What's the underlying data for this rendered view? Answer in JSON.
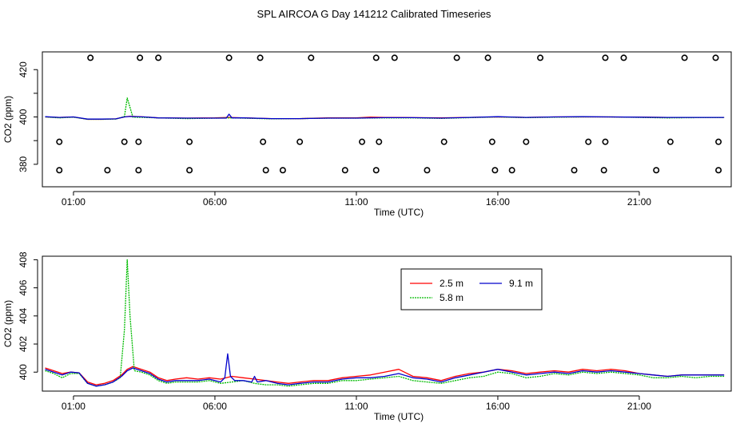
{
  "figure": {
    "title": "SPL AIRCOA G  Day 141212  Calibrated Timeseries"
  },
  "chart_data": [
    {
      "type": "line+scatter",
      "panel": "top",
      "xlabel": "Time (UTC)",
      "ylabel": "CO2 (ppm)",
      "xlim": [
        -0.1,
        24.25
      ],
      "ylim": [
        370.5,
        427.5
      ],
      "xticks": [
        1,
        6,
        11,
        16,
        21
      ],
      "xtick_labels": [
        "01:00",
        "06:00",
        "11:00",
        "16:00",
        "21:00"
      ],
      "yticks": [
        380,
        390,
        400,
        410,
        420
      ],
      "ytick_labels": [
        "380",
        "",
        "400",
        "",
        "420"
      ],
      "series": [
        {
          "name": "2.5 m",
          "color": "#ff0000",
          "x": [
            0,
            0.5,
            1,
            1.5,
            2,
            2.5,
            2.8,
            3,
            3.5,
            4,
            5,
            6,
            6.5,
            7,
            8,
            9,
            10,
            11,
            11.5,
            12,
            13,
            14,
            15,
            16,
            17,
            18,
            19,
            20,
            21,
            22,
            23,
            24
          ],
          "y": [
            400,
            399.8,
            400,
            399,
            399,
            399.2,
            400,
            400.3,
            400,
            399.6,
            399.5,
            399.6,
            399.8,
            399.6,
            399.3,
            399.3,
            399.6,
            399.6,
            399.9,
            399.8,
            399.7,
            399.6,
            399.8,
            400,
            399.8,
            400,
            400,
            400,
            399.9,
            399.8,
            399.8,
            399.8
          ]
        },
        {
          "name": "5.8 m",
          "color": "#00bb00",
          "x": [
            0,
            0.5,
            1,
            1.5,
            2,
            2.5,
            2.8,
            2.9,
            3.1,
            3.5,
            4,
            5,
            6,
            6.5,
            7,
            8,
            9,
            10,
            11,
            12,
            13,
            14,
            15,
            16,
            17,
            18,
            19,
            20,
            21,
            22,
            23,
            24
          ],
          "y": [
            400,
            399.6,
            399.9,
            399,
            399,
            399.1,
            400.2,
            408,
            399.9,
            399.8,
            399.6,
            399.3,
            399.5,
            399.6,
            399.5,
            399.2,
            399.3,
            399.5,
            399.5,
            399.6,
            399.6,
            399.4,
            399.7,
            400,
            399.7,
            399.9,
            400,
            400,
            399.8,
            399.6,
            399.7,
            399.7
          ]
        },
        {
          "name": "9.1 m",
          "color": "#0000cc",
          "x": [
            0,
            0.5,
            1,
            1.5,
            2,
            2.5,
            2.8,
            3,
            3.5,
            4,
            5,
            6,
            6.4,
            6.5,
            6.6,
            7,
            8,
            9,
            10,
            11,
            12,
            13,
            14,
            15,
            16,
            17,
            18,
            19,
            20,
            21,
            22,
            23,
            24
          ],
          "y": [
            400.1,
            399.8,
            400,
            399.1,
            399.1,
            399.2,
            400,
            400.2,
            400,
            399.6,
            399.5,
            399.5,
            399.5,
            401.2,
            399.6,
            399.6,
            399.3,
            399.3,
            399.5,
            399.5,
            399.7,
            399.7,
            399.5,
            399.8,
            400.1,
            399.8,
            400,
            400.1,
            400,
            399.9,
            399.8,
            399.8,
            399.8
          ]
        }
      ],
      "cal_points": [
        {
          "x": 0.5,
          "y": 377.5
        },
        {
          "x": 0.5,
          "y": 389.5
        },
        {
          "x": 1.6,
          "y": 425
        },
        {
          "x": 2.2,
          "y": 377.5
        },
        {
          "x": 2.8,
          "y": 389.5
        },
        {
          "x": 3.35,
          "y": 425
        },
        {
          "x": 3.3,
          "y": 389.5
        },
        {
          "x": 3.3,
          "y": 377.5
        },
        {
          "x": 4.0,
          "y": 425
        },
        {
          "x": 5.1,
          "y": 377.5
        },
        {
          "x": 5.1,
          "y": 389.5
        },
        {
          "x": 6.5,
          "y": 425
        },
        {
          "x": 7.6,
          "y": 425
        },
        {
          "x": 7.7,
          "y": 389.5
        },
        {
          "x": 7.8,
          "y": 377.5
        },
        {
          "x": 8.4,
          "y": 377.5
        },
        {
          "x": 9.0,
          "y": 389.5
        },
        {
          "x": 9.4,
          "y": 425
        },
        {
          "x": 10.6,
          "y": 377.5
        },
        {
          "x": 11.2,
          "y": 389.5
        },
        {
          "x": 11.7,
          "y": 425
        },
        {
          "x": 11.8,
          "y": 389.5
        },
        {
          "x": 11.7,
          "y": 377.5
        },
        {
          "x": 12.35,
          "y": 425
        },
        {
          "x": 13.5,
          "y": 377.5
        },
        {
          "x": 14.1,
          "y": 389.5
        },
        {
          "x": 14.55,
          "y": 425
        },
        {
          "x": 15.65,
          "y": 425
        },
        {
          "x": 15.8,
          "y": 389.5
        },
        {
          "x": 15.9,
          "y": 377.5
        },
        {
          "x": 16.5,
          "y": 377.5
        },
        {
          "x": 17.0,
          "y": 389.5
        },
        {
          "x": 17.5,
          "y": 425
        },
        {
          "x": 18.7,
          "y": 377.5
        },
        {
          "x": 19.2,
          "y": 389.5
        },
        {
          "x": 19.8,
          "y": 425
        },
        {
          "x": 19.8,
          "y": 389.5
        },
        {
          "x": 19.75,
          "y": 377.5
        },
        {
          "x": 20.45,
          "y": 425
        },
        {
          "x": 21.6,
          "y": 377.5
        },
        {
          "x": 22.1,
          "y": 389.5
        },
        {
          "x": 22.6,
          "y": 425
        },
        {
          "x": 23.7,
          "y": 425
        },
        {
          "x": 23.8,
          "y": 389.5
        },
        {
          "x": 23.8,
          "y": 377.5
        }
      ]
    },
    {
      "type": "line",
      "panel": "bottom",
      "xlabel": "Time (UTC)",
      "ylabel": "CO2 (ppm)",
      "xlim": [
        -0.1,
        24.25
      ],
      "ylim": [
        398.65,
        408.25
      ],
      "xticks": [
        1,
        6,
        11,
        16,
        21
      ],
      "xtick_labels": [
        "01:00",
        "06:00",
        "11:00",
        "16:00",
        "21:00"
      ],
      "yticks": [
        400,
        402,
        404,
        406,
        408
      ],
      "ytick_labels": [
        "400",
        "402",
        "404",
        "406",
        "408"
      ],
      "legend": {
        "position": "top-right",
        "entries": [
          "2.5 m",
          "9.1 m",
          "5.8 m"
        ]
      },
      "series": [
        {
          "name": "2.5 m",
          "color": "#ff0000",
          "x": [
            0,
            0.3,
            0.6,
            0.9,
            1.2,
            1.5,
            1.8,
            2.1,
            2.4,
            2.7,
            2.9,
            3.1,
            3.4,
            3.7,
            4.0,
            4.3,
            4.6,
            5.0,
            5.4,
            5.8,
            6.2,
            6.6,
            7.0,
            7.4,
            7.8,
            8.2,
            8.6,
            9.0,
            9.5,
            10.0,
            10.5,
            11.0,
            11.5,
            12.0,
            12.5,
            13.0,
            13.5,
            14.0,
            14.5,
            15.0,
            15.5,
            16.0,
            16.5,
            17.0,
            17.5,
            18.0,
            18.5,
            19.0,
            19.5,
            20.0,
            20.5,
            21.0,
            21.5,
            22.0,
            22.5,
            23.0,
            23.5,
            24.0
          ],
          "y": [
            400.3,
            400.1,
            399.9,
            400.0,
            399.95,
            399.3,
            399.1,
            399.2,
            399.4,
            399.8,
            400.2,
            400.4,
            400.2,
            400.0,
            399.6,
            399.4,
            399.5,
            399.6,
            399.5,
            399.6,
            399.5,
            399.7,
            399.6,
            399.5,
            399.4,
            399.3,
            399.2,
            399.3,
            399.4,
            399.4,
            399.6,
            399.7,
            399.8,
            400.0,
            400.2,
            399.7,
            399.6,
            399.4,
            399.7,
            399.9,
            400.0,
            400.2,
            400.1,
            399.9,
            400.0,
            400.1,
            400.0,
            400.2,
            400.1,
            400.2,
            400.1,
            399.9,
            399.8,
            399.7,
            399.8,
            399.8,
            399.8,
            399.8
          ]
        },
        {
          "name": "5.8 m",
          "color": "#00bb00",
          "x": [
            0,
            0.3,
            0.6,
            0.9,
            1.2,
            1.5,
            1.8,
            2.1,
            2.4,
            2.65,
            2.8,
            2.9,
            3.0,
            3.15,
            3.4,
            3.7,
            4.0,
            4.3,
            4.6,
            5.0,
            5.4,
            5.8,
            6.2,
            6.6,
            7.0,
            7.4,
            7.8,
            8.2,
            8.6,
            9.0,
            9.5,
            10.0,
            10.5,
            11.0,
            11.5,
            12.0,
            12.5,
            13.0,
            13.5,
            14.0,
            14.5,
            15.0,
            15.5,
            16.0,
            16.5,
            17.0,
            17.5,
            18.0,
            18.5,
            19.0,
            19.5,
            20.0,
            20.5,
            21.0,
            21.5,
            22.0,
            22.5,
            23.0,
            23.5,
            24.0
          ],
          "y": [
            400.1,
            399.9,
            399.6,
            399.9,
            399.9,
            399.2,
            399.0,
            399.1,
            399.3,
            399.6,
            403.0,
            408.0,
            404.0,
            400.1,
            400.0,
            399.8,
            399.4,
            399.2,
            399.3,
            399.3,
            399.3,
            399.4,
            399.2,
            399.3,
            399.4,
            399.2,
            399.1,
            399.1,
            399.0,
            399.1,
            399.2,
            399.2,
            399.4,
            399.4,
            399.5,
            399.6,
            399.7,
            399.4,
            399.3,
            399.2,
            399.4,
            399.6,
            399.7,
            400.0,
            399.9,
            399.6,
            399.7,
            399.9,
            399.8,
            400.0,
            399.9,
            400.0,
            399.9,
            399.8,
            399.6,
            399.6,
            399.7,
            399.6,
            399.7,
            399.7
          ]
        },
        {
          "name": "9.1 m",
          "color": "#0000cc",
          "x": [
            0,
            0.3,
            0.6,
            0.9,
            1.2,
            1.5,
            1.8,
            2.1,
            2.4,
            2.7,
            2.9,
            3.1,
            3.4,
            3.7,
            4.0,
            4.3,
            4.6,
            5.0,
            5.4,
            5.8,
            6.2,
            6.35,
            6.45,
            6.55,
            6.7,
            7.0,
            7.3,
            7.4,
            7.5,
            7.8,
            8.2,
            8.6,
            9.0,
            9.5,
            10.0,
            10.5,
            11.0,
            11.5,
            12.0,
            12.5,
            13.0,
            13.5,
            14.0,
            14.5,
            15.0,
            15.5,
            16.0,
            16.5,
            17.0,
            17.5,
            18.0,
            18.5,
            19.0,
            19.5,
            20.0,
            20.5,
            21.0,
            21.5,
            22.0,
            22.5,
            23.0,
            23.5,
            24.0
          ],
          "y": [
            400.2,
            400.0,
            399.8,
            400.0,
            399.95,
            399.2,
            399.0,
            399.1,
            399.3,
            399.7,
            400.1,
            400.3,
            400.1,
            399.9,
            399.5,
            399.3,
            399.4,
            399.4,
            399.4,
            399.5,
            399.3,
            399.6,
            401.3,
            399.7,
            399.4,
            399.4,
            399.3,
            399.7,
            399.3,
            399.4,
            399.2,
            399.1,
            399.2,
            399.3,
            399.3,
            399.5,
            399.6,
            399.6,
            399.7,
            399.9,
            399.6,
            399.5,
            399.3,
            399.6,
            399.8,
            400.0,
            400.2,
            400.0,
            399.8,
            399.9,
            400.0,
            399.9,
            400.1,
            400.0,
            400.1,
            400.0,
            399.9,
            399.8,
            399.7,
            399.8,
            399.8,
            399.8,
            399.8
          ]
        }
      ]
    }
  ]
}
